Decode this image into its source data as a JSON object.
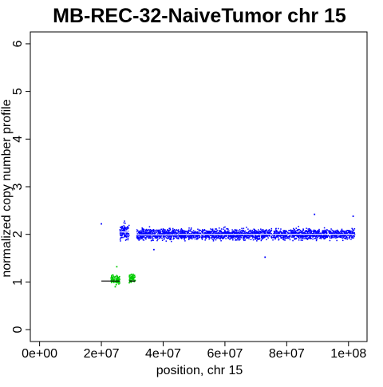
{
  "chart_data": {
    "type": "scatter",
    "title": "MB-REC-32-NaiveTumor chr 15",
    "xlabel": "position, chr 15",
    "ylabel": "normalized copy number profile",
    "xlim": [
      -3000000,
      106000000
    ],
    "ylim": [
      -0.25,
      6.25
    ],
    "x_ticks": [
      0,
      20000000,
      40000000,
      60000000,
      80000000,
      100000000
    ],
    "x_tick_labels": [
      "0e+00",
      "2e+07",
      "4e+07",
      "6e+07",
      "8e+07",
      "1e+08"
    ],
    "y_ticks": [
      0,
      1,
      2,
      3,
      4,
      5,
      6
    ],
    "y_tick_labels": [
      "0",
      "1",
      "2",
      "3",
      "4",
      "5",
      "6"
    ],
    "grid": false,
    "colors": {
      "normal": "#0000ff",
      "loss": "#00cc00",
      "segment": "#ffffff",
      "segment_loss": "#000000",
      "axis": "#000000"
    },
    "series": [
      {
        "color": "#0000ff",
        "regions": [
          {
            "x_start": 26000000,
            "x_end": 29000000,
            "level": 2.05,
            "spread": 0.14
          },
          {
            "x_start": 31500000,
            "x_end": 102000000,
            "level": 2.0,
            "spread": 0.09
          }
        ],
        "points": [
          {
            "x": 20000000,
            "y": 2.22
          },
          {
            "x": 89000000,
            "y": 2.42
          },
          {
            "x": 101500000,
            "y": 2.38
          },
          {
            "x": 73000000,
            "y": 1.52
          },
          {
            "x": 37000000,
            "y": 1.68
          }
        ]
      },
      {
        "color": "#00cc00",
        "regions": [
          {
            "x_start": 23000000,
            "x_end": 26000000,
            "level": 1.05,
            "spread": 0.07
          },
          {
            "x_start": 29000000,
            "x_end": 31000000,
            "level": 1.08,
            "spread": 0.07
          }
        ],
        "points": [
          {
            "x": 25000000,
            "y": 1.32
          },
          {
            "x": 24500000,
            "y": 0.9
          }
        ]
      }
    ],
    "segments": [
      {
        "x_start": 20000000,
        "x_end": 26000000,
        "y": 1.02,
        "color": "#000000"
      },
      {
        "x_start": 29000000,
        "x_end": 31000000,
        "y": 1.02,
        "color": "#000000"
      },
      {
        "x_start": 26000000,
        "x_end": 29000000,
        "y": 2.05,
        "color": "#ffffff"
      },
      {
        "x_start": 31500000,
        "x_end": 45000000,
        "y": 1.99,
        "color": "#ffffff"
      },
      {
        "x_start": 45000000,
        "x_end": 102000000,
        "y": 2.0,
        "color": "#ffffff"
      }
    ]
  }
}
